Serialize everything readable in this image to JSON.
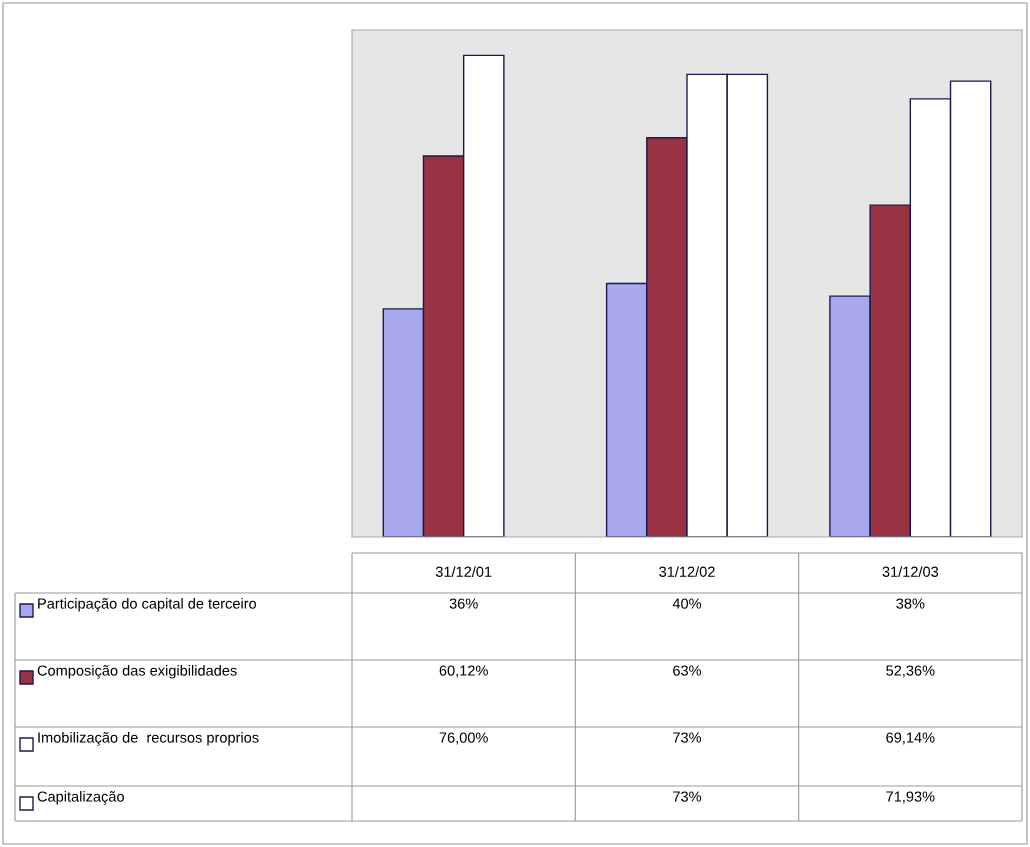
{
  "chart_data": {
    "type": "bar",
    "categories": [
      "31/12/01",
      "31/12/02",
      "31/12/03"
    ],
    "series": [
      {
        "name": "Participação do capital de terceiro",
        "color": "#a8a8ee",
        "values": [
          36,
          40,
          38
        ],
        "value_labels": [
          "36%",
          "40%",
          "38%"
        ]
      },
      {
        "name": "Composição das exigibilidades",
        "color": "#993344",
        "values": [
          60.12,
          63,
          52.36
        ],
        "value_labels": [
          "60,12%",
          "63%",
          "52,36%"
        ]
      },
      {
        "name": "Imobilização de  recursos proprios",
        "color": "#ffffff",
        "values": [
          76.0,
          73,
          69.14
        ],
        "value_labels": [
          "76,00%",
          "73%",
          "69,14%"
        ]
      },
      {
        "name": "Capitalização",
        "color": "#ffffff",
        "values": [
          null,
          73,
          71.93
        ],
        "value_labels": [
          null,
          "73%",
          "71,93%"
        ]
      }
    ],
    "ylim": [
      0,
      80
    ],
    "legend": "bottom"
  }
}
